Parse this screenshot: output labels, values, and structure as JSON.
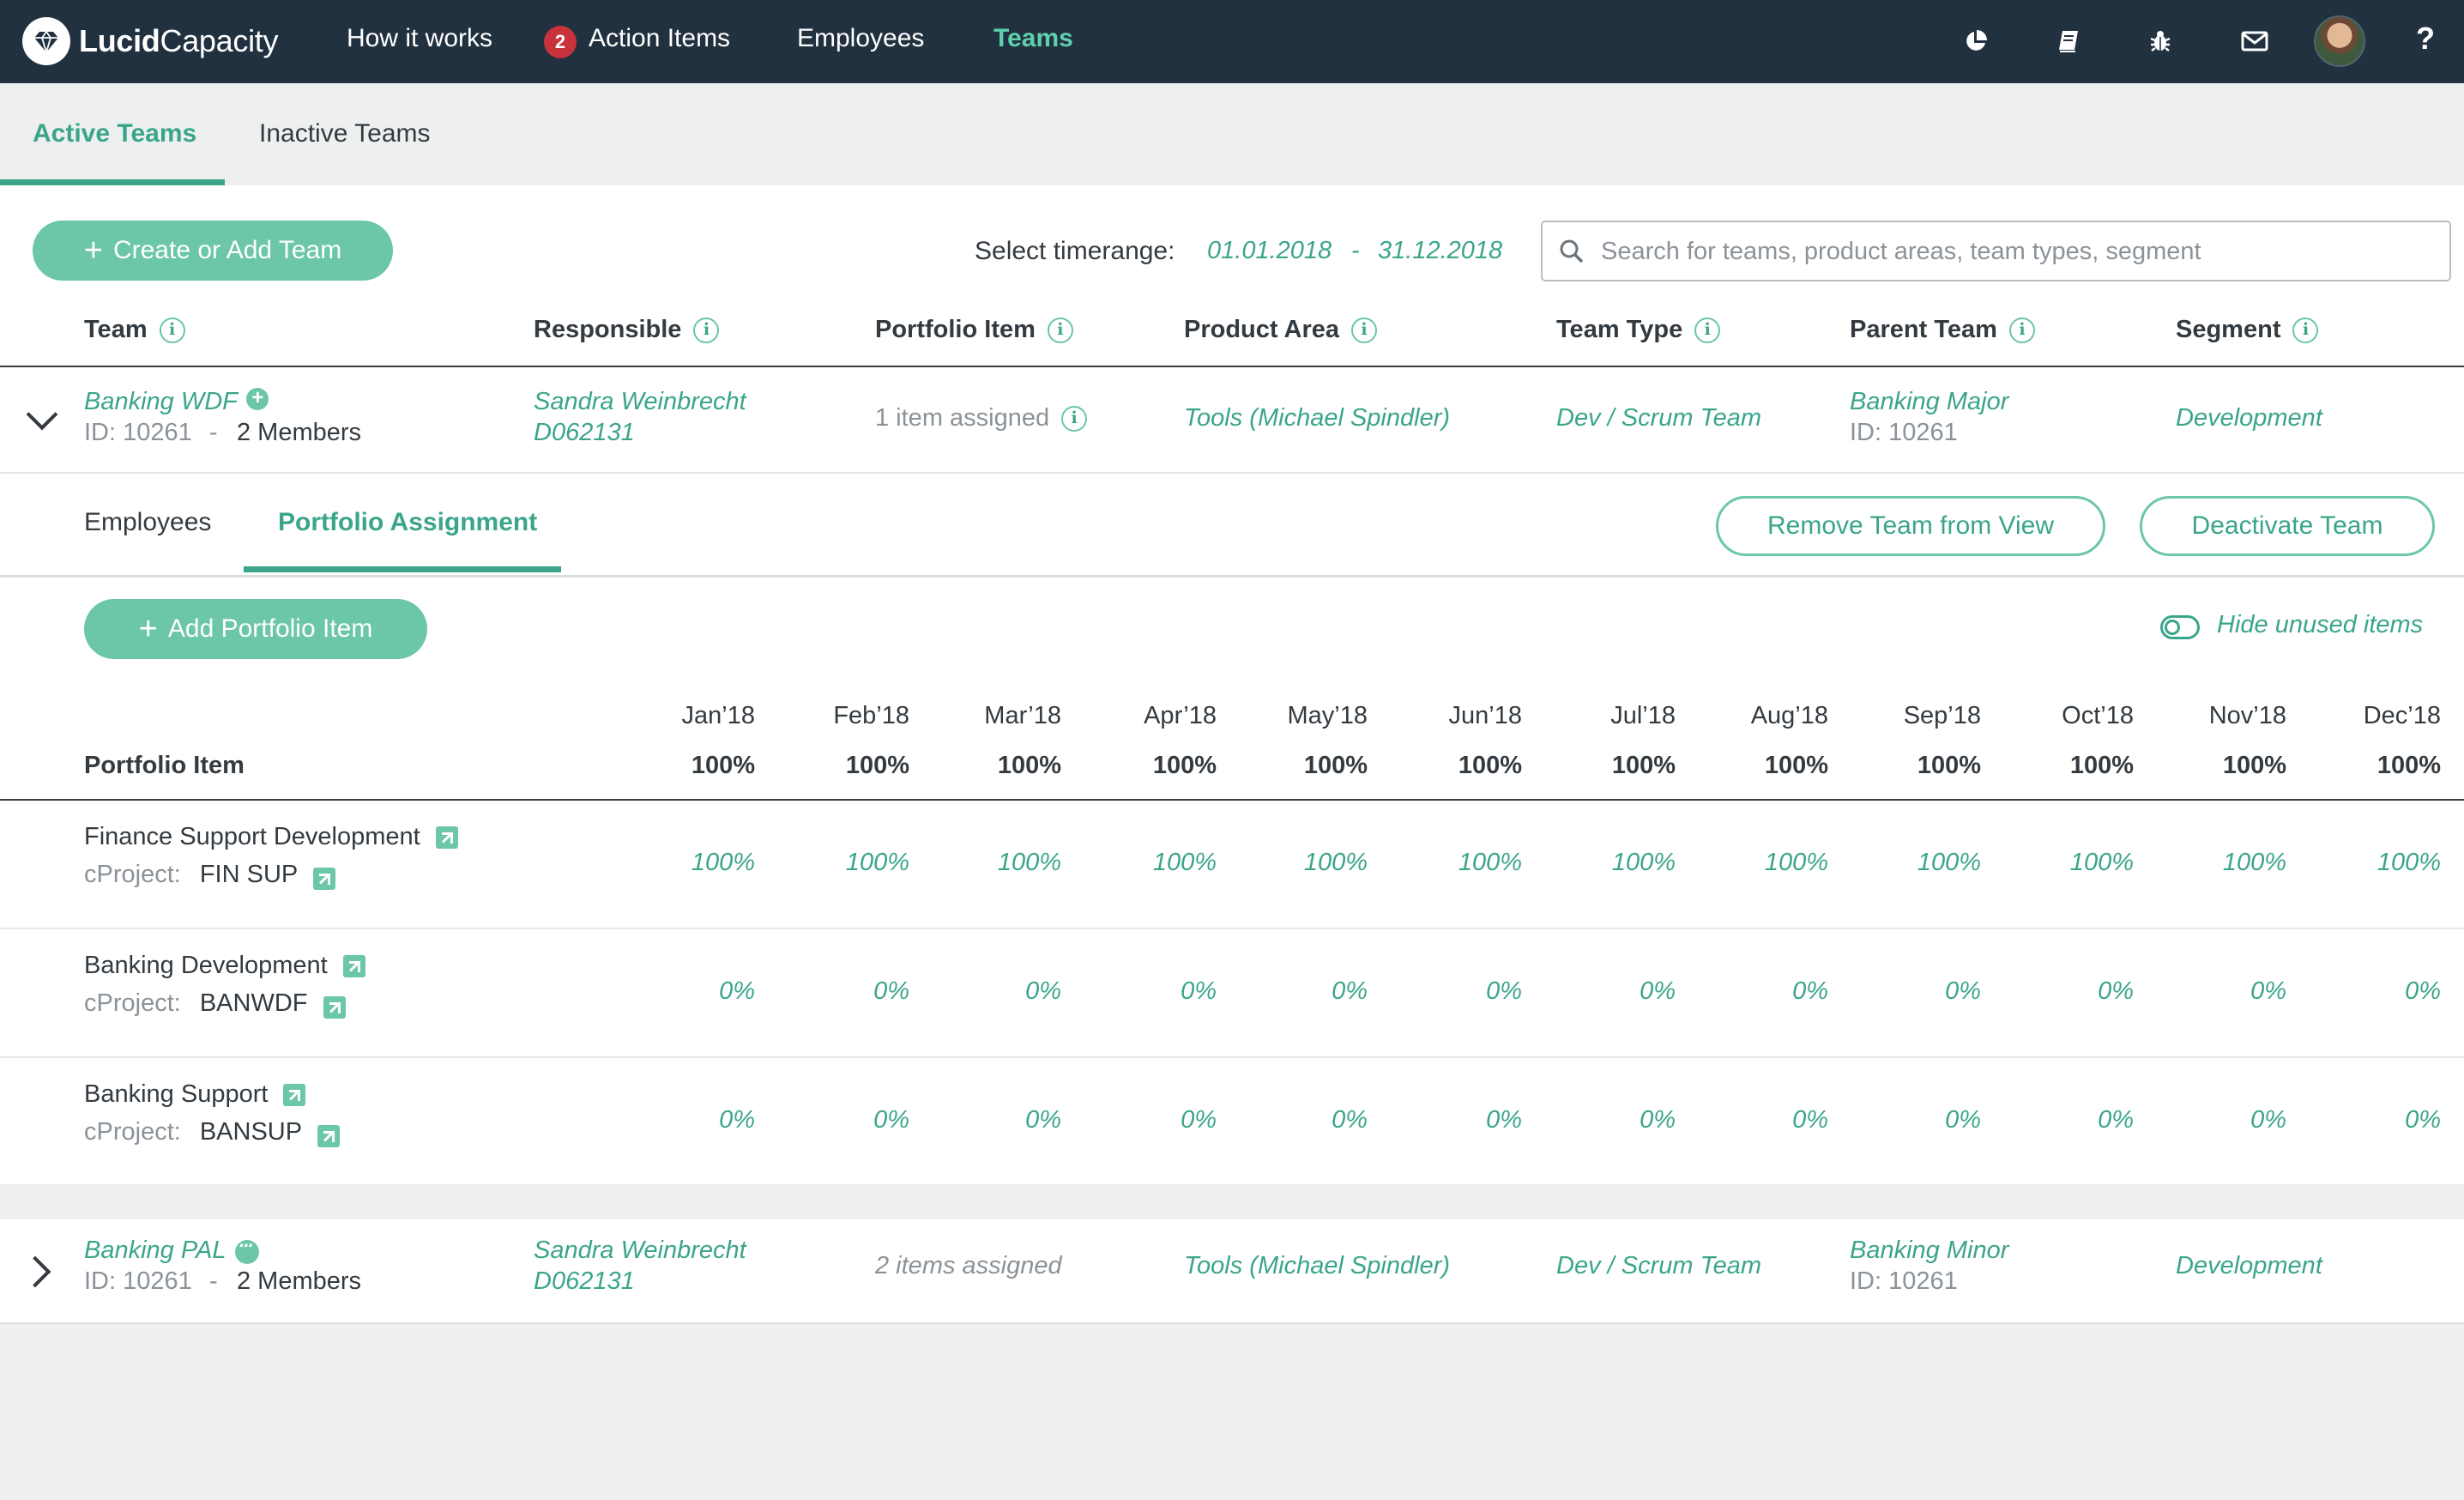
{
  "nav": {
    "logo_bold": "Lucid",
    "logo_light": "Capacity",
    "items": [
      {
        "label": "How it works"
      },
      {
        "label": "Action Items",
        "badge": "2"
      },
      {
        "label": "Employees"
      },
      {
        "label": "Teams",
        "active": true
      }
    ],
    "icons": [
      "pie-chart-icon",
      "book-icon",
      "bug-icon",
      "mail-icon",
      "avatar",
      "help-icon"
    ],
    "help": "?"
  },
  "tabs": [
    {
      "label": "Active Teams",
      "active": true
    },
    {
      "label": "Inactive Teams"
    }
  ],
  "toolbar": {
    "create_label": "Create or Add Team",
    "timerange_label": "Select timerange:",
    "date_from": "01.01.2018",
    "date_sep": "-",
    "date_to": "31.12.2018",
    "search_placeholder": "Search for teams, product areas, team types, segment"
  },
  "columns": [
    "Team",
    "Responsible",
    "Portfolio Item",
    "Product Area",
    "Team Type",
    "Parent Team",
    "Segment"
  ],
  "teams": [
    {
      "name": "Banking WDF",
      "id": "ID: 10261",
      "sep": "-",
      "members": "2 Members",
      "responsible_name": "Sandra Weinbrecht",
      "responsible_id": "D062131",
      "portfolio": "1 item assigned",
      "product_area": "Tools (Michael Spindler)",
      "team_type": "Dev / Scrum Team",
      "parent_name": "Banking Major",
      "parent_id": "ID: 10261",
      "segment": "Development",
      "expanded": true
    },
    {
      "name": "Banking PAL",
      "id": "ID: 10261",
      "sep": "-",
      "members": "2 Members",
      "responsible_name": "Sandra Weinbrecht",
      "responsible_id": "D062131",
      "portfolio": "2 items assigned",
      "product_area": "Tools (Michael Spindler)",
      "team_type": "Dev / Scrum Team",
      "parent_name": "Banking Minor",
      "parent_id": "ID: 10261",
      "segment": "Development",
      "expanded": false
    }
  ],
  "detail": {
    "sub_tabs": [
      {
        "label": "Employees"
      },
      {
        "label": "Portfolio Assignment",
        "active": true
      }
    ],
    "remove_label": "Remove Team from View",
    "deactivate_label": "Deactivate Team",
    "add_item_label": "Add Portfolio Item",
    "hide_unused_label": "Hide unused items",
    "portfolio_header": "Portfolio Item",
    "months": [
      "Jan’18",
      "Feb’18",
      "Mar’18",
      "Apr’18",
      "May’18",
      "Jun’18",
      "Jul’18",
      "Aug’18",
      "Sep’18",
      "Oct’18",
      "Nov’18",
      "Dec’18"
    ],
    "totals": [
      "100%",
      "100%",
      "100%",
      "100%",
      "100%",
      "100%",
      "100%",
      "100%",
      "100%",
      "100%",
      "100%",
      "100%"
    ],
    "cproject_label": "cProject:",
    "items": [
      {
        "name": "Finance Support Development",
        "cproject": "FIN SUP",
        "values": [
          "100%",
          "100%",
          "100%",
          "100%",
          "100%",
          "100%",
          "100%",
          "100%",
          "100%",
          "100%",
          "100%",
          "100%"
        ]
      },
      {
        "name": "Banking Development",
        "cproject": "BANWDF",
        "values": [
          "0%",
          "0%",
          "0%",
          "0%",
          "0%",
          "0%",
          "0%",
          "0%",
          "0%",
          "0%",
          "0%",
          "0%"
        ]
      },
      {
        "name": "Banking Support",
        "cproject": "BANSUP",
        "values": [
          "0%",
          "0%",
          "0%",
          "0%",
          "0%",
          "0%",
          "0%",
          "0%",
          "0%",
          "0%",
          "0%",
          "0%"
        ]
      }
    ]
  }
}
